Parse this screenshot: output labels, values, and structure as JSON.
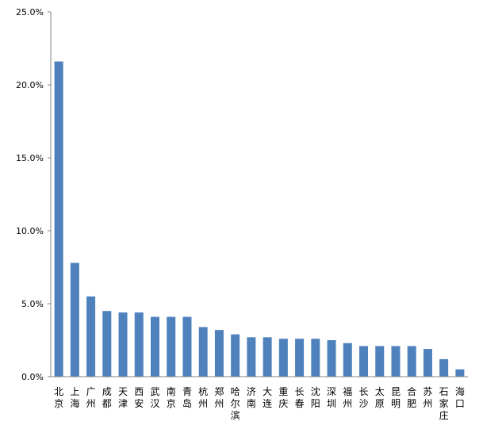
{
  "chart_data": {
    "type": "bar",
    "title": "",
    "xlabel": "",
    "ylabel": "",
    "ylim": [
      0,
      25
    ],
    "y_ticks": [
      "0.0%",
      "5.0%",
      "10.0%",
      "15.0%",
      "20.0%",
      "25.0%"
    ],
    "grid": false,
    "legend": "none",
    "bar_color": "#4f81bd",
    "categories": [
      "北京",
      "上海",
      "广州",
      "成都",
      "天津",
      "西安",
      "武汉",
      "南京",
      "青岛",
      "杭州",
      "郑州",
      "哈尔滨",
      "济南",
      "大连",
      "重庆",
      "长春",
      "沈阳",
      "深圳",
      "福州",
      "长沙",
      "太原",
      "昆明",
      "合肥",
      "苏州",
      "石家庄",
      "海口"
    ],
    "values": [
      21.6,
      7.8,
      5.5,
      4.5,
      4.4,
      4.4,
      4.1,
      4.1,
      4.1,
      3.4,
      3.2,
      2.9,
      2.7,
      2.7,
      2.6,
      2.6,
      2.6,
      2.5,
      2.3,
      2.1,
      2.1,
      2.1,
      2.1,
      1.9,
      1.2,
      0.5
    ]
  }
}
